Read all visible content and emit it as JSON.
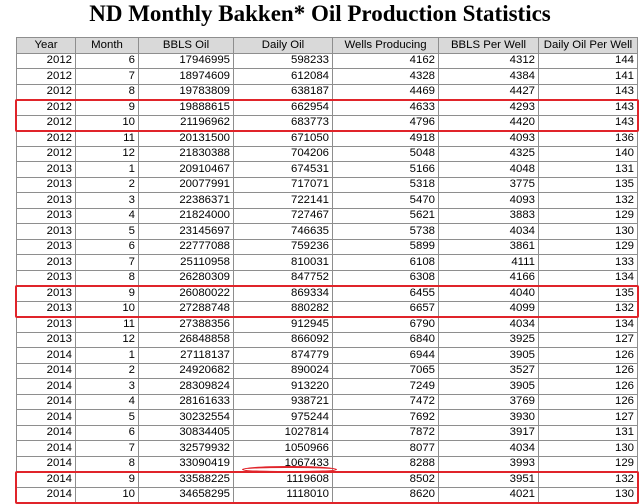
{
  "title": "ND Monthly Bakken* Oil Production Statistics",
  "columns": [
    "Year",
    "Month",
    "BBLS Oil",
    "Daily Oil",
    "Wells Producing",
    "BBLS Per Well",
    "Daily Oil Per Well"
  ],
  "rows": [
    [
      "2012",
      "6",
      "17946995",
      "598233",
      "4162",
      "4312",
      "144"
    ],
    [
      "2012",
      "7",
      "18974609",
      "612084",
      "4328",
      "4384",
      "141"
    ],
    [
      "2012",
      "8",
      "19783809",
      "638187",
      "4469",
      "4427",
      "143"
    ],
    [
      "2012",
      "9",
      "19888615",
      "662954",
      "4633",
      "4293",
      "143"
    ],
    [
      "2012",
      "10",
      "21196962",
      "683773",
      "4796",
      "4420",
      "143"
    ],
    [
      "2012",
      "11",
      "20131500",
      "671050",
      "4918",
      "4093",
      "136"
    ],
    [
      "2012",
      "12",
      "21830388",
      "704206",
      "5048",
      "4325",
      "140"
    ],
    [
      "2013",
      "1",
      "20910467",
      "674531",
      "5166",
      "4048",
      "131"
    ],
    [
      "2013",
      "2",
      "20077991",
      "717071",
      "5318",
      "3775",
      "135"
    ],
    [
      "2013",
      "3",
      "22386371",
      "722141",
      "5470",
      "4093",
      "132"
    ],
    [
      "2013",
      "4",
      "21824000",
      "727467",
      "5621",
      "3883",
      "129"
    ],
    [
      "2013",
      "5",
      "23145697",
      "746635",
      "5738",
      "4034",
      "130"
    ],
    [
      "2013",
      "6",
      "22777088",
      "759236",
      "5899",
      "3861",
      "129"
    ],
    [
      "2013",
      "7",
      "25110958",
      "810031",
      "6108",
      "4111",
      "133"
    ],
    [
      "2013",
      "8",
      "26280309",
      "847752",
      "6308",
      "4166",
      "134"
    ],
    [
      "2013",
      "9",
      "26080022",
      "869334",
      "6455",
      "4040",
      "135"
    ],
    [
      "2013",
      "10",
      "27288748",
      "880282",
      "6657",
      "4099",
      "132"
    ],
    [
      "2013",
      "11",
      "27388356",
      "912945",
      "6790",
      "4034",
      "134"
    ],
    [
      "2013",
      "12",
      "26848858",
      "866092",
      "6840",
      "3925",
      "127"
    ],
    [
      "2014",
      "1",
      "27118137",
      "874779",
      "6944",
      "3905",
      "126"
    ],
    [
      "2014",
      "2",
      "24920682",
      "890024",
      "7065",
      "3527",
      "126"
    ],
    [
      "2014",
      "3",
      "28309824",
      "913220",
      "7249",
      "3905",
      "126"
    ],
    [
      "2014",
      "4",
      "28161633",
      "938721",
      "7472",
      "3769",
      "126"
    ],
    [
      "2014",
      "5",
      "30232554",
      "975244",
      "7692",
      "3930",
      "127"
    ],
    [
      "2014",
      "6",
      "30834405",
      "1027814",
      "7872",
      "3917",
      "131"
    ],
    [
      "2014",
      "7",
      "32579932",
      "1050966",
      "8077",
      "4034",
      "130"
    ],
    [
      "2014",
      "8",
      "33090419",
      "1067433",
      "8288",
      "3993",
      "129"
    ],
    [
      "2014",
      "9",
      "33588225",
      "1119608",
      "8502",
      "3951",
      "132"
    ],
    [
      "2014",
      "10",
      "34658295",
      "1118010",
      "8620",
      "4021",
      "130"
    ]
  ],
  "highlight_color": "#e0242a",
  "highlighted_row_pairs": [
    [
      3,
      4
    ],
    [
      15,
      16
    ],
    [
      27,
      28
    ]
  ],
  "circled_cells": [
    [
      27,
      3
    ],
    [
      28,
      3
    ]
  ]
}
